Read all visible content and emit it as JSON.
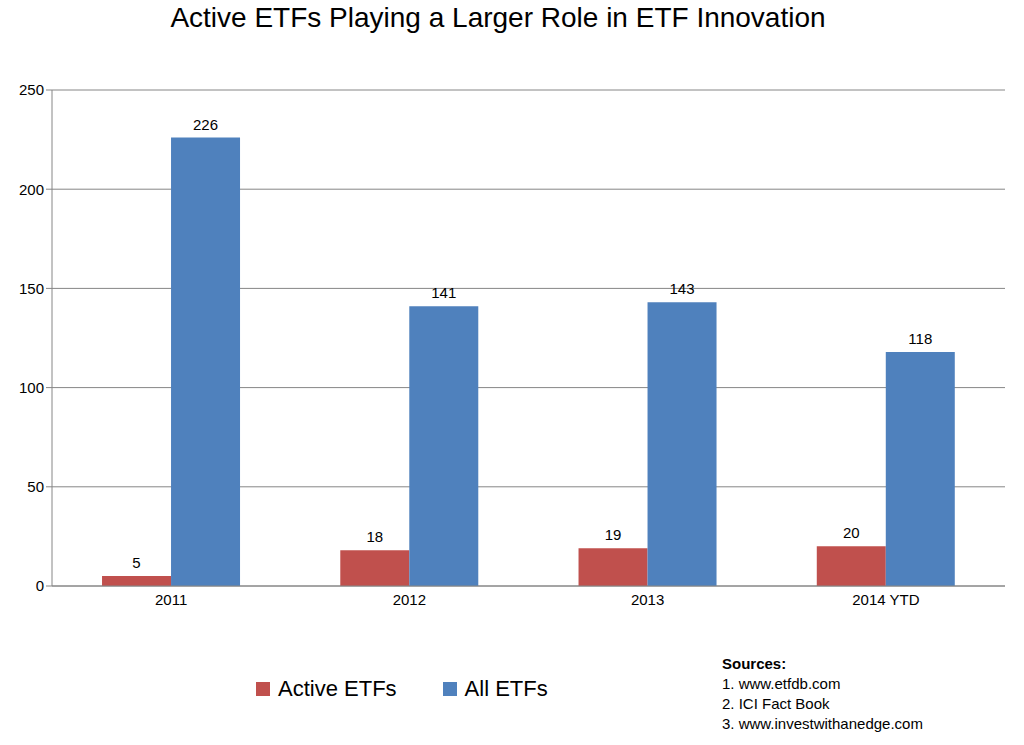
{
  "chart_data": {
    "type": "bar",
    "title": "Active ETFs Playing a Larger Role in ETF Innovation",
    "categories": [
      "2011",
      "2012",
      "2013",
      "2014 YTD"
    ],
    "series": [
      {
        "name": "Active ETFs",
        "color": "#c0504d",
        "values": [
          5,
          18,
          19,
          20
        ]
      },
      {
        "name": "All ETFs",
        "color": "#4f81bd",
        "values": [
          226,
          141,
          143,
          118
        ]
      }
    ],
    "ylim": [
      0,
      250
    ],
    "yticks": [
      0,
      50,
      100,
      150,
      200,
      250
    ],
    "grid": true,
    "data_labels": true,
    "legend": "bottom",
    "annotations": [
      "Sources:",
      "1. www.etfdb.com",
      "2. ICI Fact Book",
      "3. www.investwithanedge.com"
    ]
  }
}
